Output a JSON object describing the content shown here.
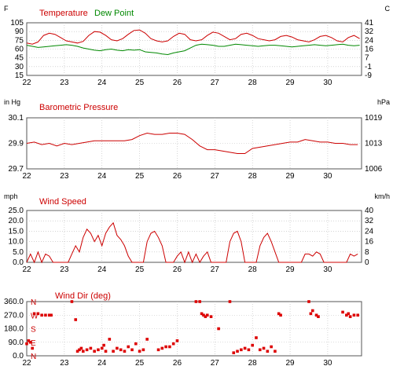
{
  "chart_data": [
    {
      "type": "line",
      "title": "",
      "legend": [
        {
          "label": "Temperature",
          "color": "#cc0000"
        },
        {
          "label": "Dew Point",
          "color": "#008800"
        }
      ],
      "left_unit": "F",
      "right_unit": "C",
      "x_ticks": [
        "22",
        "23",
        "24",
        "25",
        "26",
        "27",
        "28",
        "29",
        "30"
      ],
      "xlim": [
        22,
        30.9
      ],
      "ylim": [
        15,
        111
      ],
      "left_ticks": [
        105,
        90,
        75,
        60,
        45,
        30,
        15
      ],
      "right_ticks": [
        "41",
        "32",
        "24",
        "16",
        "7",
        "-1",
        "-9"
      ],
      "grid": true,
      "series": [
        {
          "name": "Temperature",
          "color": "#cc0000",
          "x": [
            22.0,
            22.15,
            22.3,
            22.45,
            22.6,
            22.75,
            22.9,
            23.05,
            23.2,
            23.35,
            23.5,
            23.65,
            23.8,
            23.95,
            24.1,
            24.25,
            24.4,
            24.55,
            24.7,
            24.85,
            25.0,
            25.15,
            25.3,
            25.45,
            25.6,
            25.75,
            25.9,
            26.05,
            26.2,
            26.35,
            26.5,
            26.65,
            26.8,
            26.95,
            27.1,
            27.25,
            27.4,
            27.55,
            27.7,
            27.85,
            28.0,
            28.15,
            28.3,
            28.45,
            28.6,
            28.75,
            28.9,
            29.05,
            29.2,
            29.35,
            29.5,
            29.65,
            29.8,
            29.95,
            30.1,
            30.25,
            30.4,
            30.55,
            30.7,
            30.85
          ],
          "y": [
            74,
            72,
            76,
            88,
            92,
            90,
            84,
            78,
            76,
            74,
            77,
            88,
            95,
            94,
            88,
            80,
            78,
            82,
            90,
            97,
            98,
            92,
            82,
            78,
            76,
            78,
            86,
            92,
            90,
            80,
            78,
            80,
            88,
            94,
            92,
            86,
            80,
            82,
            90,
            92,
            88,
            82,
            80,
            78,
            80,
            86,
            88,
            85,
            80,
            78,
            76,
            80,
            86,
            88,
            84,
            78,
            76,
            84,
            88,
            82
          ]
        },
        {
          "name": "Dew Point",
          "color": "#008800",
          "x": [
            22.0,
            22.15,
            22.3,
            22.45,
            22.6,
            22.75,
            22.9,
            23.05,
            23.2,
            23.35,
            23.5,
            23.65,
            23.8,
            23.95,
            24.1,
            24.25,
            24.4,
            24.55,
            24.7,
            24.85,
            25.0,
            25.15,
            25.3,
            25.45,
            25.6,
            25.75,
            25.9,
            26.05,
            26.2,
            26.35,
            26.5,
            26.65,
            26.8,
            26.95,
            27.1,
            27.25,
            27.4,
            27.55,
            27.7,
            27.85,
            28.0,
            28.15,
            28.3,
            28.45,
            28.6,
            28.75,
            28.9,
            29.05,
            29.2,
            29.35,
            29.5,
            29.65,
            29.8,
            29.95,
            30.1,
            30.25,
            30.4,
            30.55,
            30.7,
            30.85
          ],
          "y": [
            70,
            68,
            66,
            67,
            68,
            69,
            70,
            71,
            70,
            68,
            65,
            63,
            61,
            60,
            62,
            63,
            61,
            60,
            62,
            61,
            62,
            58,
            57,
            56,
            54,
            53,
            56,
            58,
            60,
            65,
            70,
            72,
            71,
            70,
            68,
            68,
            70,
            72,
            71,
            70,
            69,
            68,
            69,
            70,
            70,
            69,
            68,
            67,
            68,
            69,
            70,
            71,
            70,
            69,
            70,
            71,
            72,
            70,
            69,
            70
          ]
        }
      ]
    },
    {
      "type": "line",
      "title": "Barometric Pressure",
      "left_unit": "in Hg",
      "right_unit": "hPa",
      "x_ticks": [
        "22",
        "23",
        "24",
        "25",
        "26",
        "27",
        "28",
        "29",
        "30"
      ],
      "xlim": [
        22,
        30.9
      ],
      "ylim": [
        29.7,
        30.1
      ],
      "left_ticks": [
        "30.1",
        "29.9",
        "29.7"
      ],
      "right_ticks": [
        "1019",
        "1013",
        "1006"
      ],
      "grid": true,
      "series": [
        {
          "name": "Barometric Pressure",
          "color": "#cc0000",
          "x": [
            22.0,
            22.2,
            22.4,
            22.6,
            22.8,
            23.0,
            23.2,
            23.4,
            23.6,
            23.8,
            24.0,
            24.2,
            24.4,
            24.6,
            24.8,
            25.0,
            25.2,
            25.4,
            25.6,
            25.8,
            26.0,
            26.2,
            26.4,
            26.6,
            26.8,
            27.0,
            27.2,
            27.4,
            27.6,
            27.8,
            28.0,
            28.2,
            28.4,
            28.6,
            28.8,
            29.0,
            29.2,
            29.4,
            29.6,
            29.8,
            30.0,
            30.2,
            30.4,
            30.6,
            30.8
          ],
          "y": [
            29.9,
            29.91,
            29.89,
            29.9,
            29.88,
            29.9,
            29.89,
            29.9,
            29.91,
            29.92,
            29.92,
            29.92,
            29.92,
            29.92,
            29.93,
            29.96,
            29.98,
            29.97,
            29.97,
            29.98,
            29.98,
            29.97,
            29.93,
            29.88,
            29.85,
            29.85,
            29.84,
            29.83,
            29.82,
            29.82,
            29.86,
            29.87,
            29.88,
            29.89,
            29.9,
            29.91,
            29.91,
            29.93,
            29.92,
            29.91,
            29.91,
            29.9,
            29.9,
            29.89,
            29.89
          ]
        }
      ]
    },
    {
      "type": "line",
      "title": "Wind Speed",
      "left_unit": "mph",
      "right_unit": "km/h",
      "x_ticks": [
        "22",
        "23",
        "24",
        "25",
        "26",
        "27",
        "28",
        "29",
        "30"
      ],
      "xlim": [
        22,
        30.9
      ],
      "ylim": [
        0,
        25
      ],
      "left_ticks": [
        "25.0",
        "20.0",
        "15.0",
        "10.0",
        "5.0",
        "0.0"
      ],
      "right_ticks": [
        "40",
        "32",
        "24",
        "16",
        "8",
        "0"
      ],
      "grid": true,
      "series": [
        {
          "name": "Wind Speed",
          "color": "#cc0000",
          "x": [
            22.0,
            22.1,
            22.2,
            22.3,
            22.4,
            22.5,
            22.6,
            22.7,
            22.8,
            22.9,
            23.0,
            23.1,
            23.2,
            23.3,
            23.4,
            23.5,
            23.6,
            23.7,
            23.8,
            23.9,
            24.0,
            24.1,
            24.2,
            24.3,
            24.4,
            24.5,
            24.6,
            24.7,
            24.8,
            24.9,
            25.0,
            25.1,
            25.2,
            25.3,
            25.4,
            25.5,
            25.6,
            25.7,
            25.8,
            25.9,
            26.0,
            26.1,
            26.2,
            26.3,
            26.4,
            26.5,
            26.6,
            26.7,
            26.8,
            26.9,
            27.0,
            27.1,
            27.2,
            27.3,
            27.4,
            27.5,
            27.6,
            27.7,
            27.8,
            27.9,
            28.0,
            28.1,
            28.2,
            28.3,
            28.4,
            28.5,
            28.6,
            28.7,
            28.8,
            28.9,
            29.0,
            29.1,
            29.2,
            29.3,
            29.4,
            29.5,
            29.6,
            29.7,
            29.8,
            29.9,
            30.0,
            30.1,
            30.2,
            30.3,
            30.4,
            30.5,
            30.6,
            30.7,
            30.8
          ],
          "y": [
            0,
            4,
            0,
            5,
            0,
            4,
            3,
            0,
            0,
            0,
            0,
            0,
            4,
            8,
            5,
            12,
            16,
            14,
            10,
            13,
            8,
            14,
            17,
            19,
            13,
            11,
            8,
            3,
            0,
            0,
            0,
            0,
            10,
            14,
            15,
            12,
            8,
            0,
            0,
            0,
            3,
            5,
            0,
            5,
            0,
            4,
            0,
            3,
            5,
            0,
            0,
            0,
            0,
            0,
            10,
            14,
            15,
            10,
            0,
            0,
            0,
            0,
            8,
            12,
            14,
            10,
            5,
            0,
            0,
            0,
            0,
            0,
            0,
            0,
            4,
            4,
            3,
            5,
            4,
            0,
            0,
            0,
            0,
            0,
            0,
            0,
            4,
            3,
            4
          ]
        }
      ]
    },
    {
      "type": "scatter",
      "title": "Wind Dir (deg)",
      "x_ticks": [
        "22",
        "23",
        "24",
        "25",
        "26",
        "27",
        "28",
        "29",
        "30"
      ],
      "xlim": [
        22,
        30.9
      ],
      "ylim": [
        0,
        360
      ],
      "left_ticks": [
        "360.0",
        "270.0",
        "180.0",
        "90.0",
        "0.0"
      ],
      "compass_ticks": [
        "N",
        "W",
        "S",
        "E",
        "N"
      ],
      "grid": true,
      "series": [
        {
          "name": "Wind Dir (deg)",
          "color": "#dd0000",
          "x": [
            22.0,
            22.05,
            22.1,
            22.15,
            22.2,
            22.3,
            22.4,
            22.5,
            22.6,
            22.65,
            23.2,
            23.3,
            23.35,
            23.4,
            23.45,
            23.5,
            23.6,
            23.7,
            23.8,
            23.9,
            24.0,
            24.05,
            24.1,
            24.2,
            24.3,
            24.4,
            24.5,
            24.6,
            24.7,
            24.8,
            24.9,
            25.0,
            25.1,
            25.2,
            25.5,
            25.6,
            25.7,
            25.8,
            25.9,
            26.0,
            26.5,
            26.6,
            26.65,
            26.7,
            26.75,
            26.8,
            26.9,
            27.1,
            27.4,
            27.5,
            27.6,
            27.7,
            27.8,
            27.9,
            28.0,
            28.1,
            28.2,
            28.3,
            28.4,
            28.5,
            28.6,
            28.7,
            28.75,
            29.5,
            29.55,
            29.6,
            29.7,
            29.75,
            30.4,
            30.5,
            30.55,
            30.6,
            30.7,
            30.8
          ],
          "y": [
            80,
            100,
            90,
            50,
            280,
            280,
            270,
            270,
            270,
            270,
            360,
            240,
            30,
            40,
            50,
            30,
            40,
            50,
            30,
            40,
            50,
            70,
            30,
            110,
            30,
            50,
            40,
            30,
            60,
            40,
            80,
            30,
            40,
            110,
            40,
            50,
            60,
            60,
            80,
            100,
            360,
            360,
            280,
            270,
            260,
            270,
            260,
            180,
            360,
            20,
            30,
            40,
            50,
            40,
            70,
            120,
            40,
            50,
            30,
            60,
            30,
            280,
            270,
            360,
            280,
            300,
            270,
            260,
            290,
            270,
            280,
            260,
            270,
            270
          ]
        }
      ]
    }
  ]
}
